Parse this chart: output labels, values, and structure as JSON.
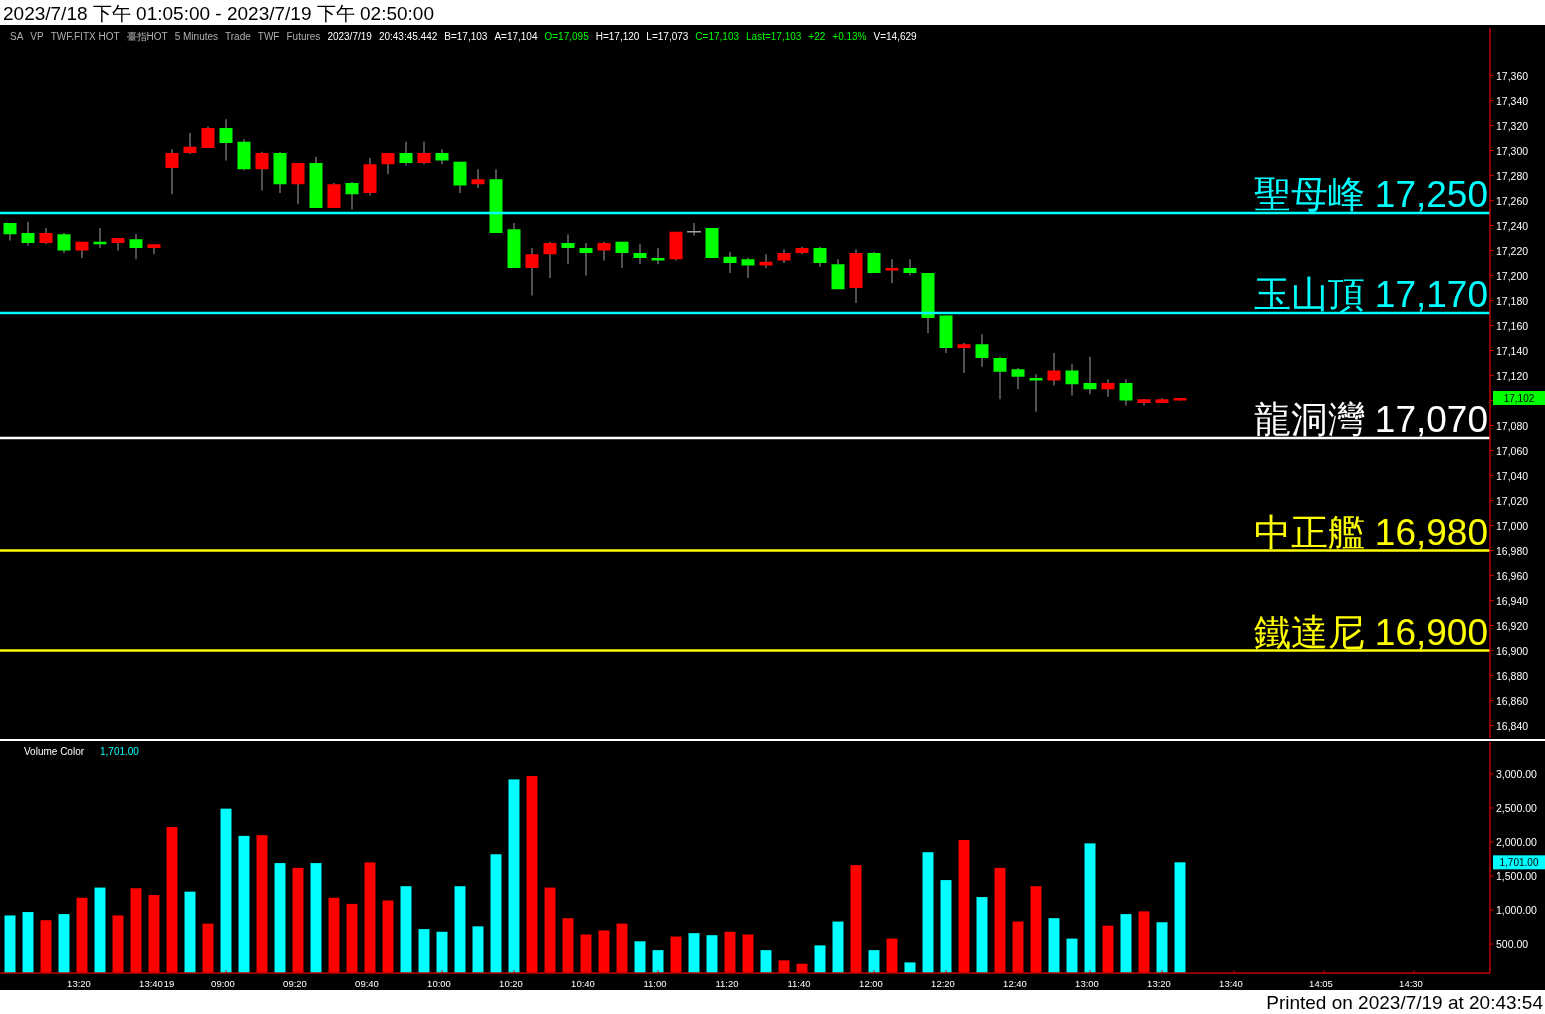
{
  "chart_data": [
    {
      "type": "candlestick",
      "title": "2023/7/18 下午 01:05:00 - 2023/7/19 下午 02:50:00",
      "categories": [
        null,
        null,
        null,
        null,
        null,
        null,
        null,
        null,
        null,
        null,
        null,
        null,
        null,
        null,
        null,
        null,
        null,
        null,
        null,
        null,
        null,
        null,
        null,
        null,
        null,
        null,
        null,
        null,
        null,
        null,
        null,
        null,
        null,
        null,
        null,
        null,
        null,
        null,
        null,
        null,
        null,
        null,
        null,
        null,
        null,
        null,
        null,
        null,
        null,
        null,
        null,
        null,
        null,
        null,
        null,
        null,
        null,
        null,
        null,
        null,
        null,
        null,
        null,
        null,
        null,
        null,
        null,
        null,
        null,
        null,
        null,
        null,
        null,
        null,
        null,
        null,
        null,
        null,
        null,
        null,
        null,
        null,
        null
      ],
      "ohlc": [
        [
          17242,
          17242,
          17228,
          17233
        ],
        [
          17234,
          17243,
          17224,
          17226
        ],
        [
          17226,
          17238,
          17225,
          17234
        ],
        [
          17233,
          17234,
          17218,
          17220
        ],
        [
          17220,
          17227,
          17214,
          17227
        ],
        [
          17227,
          17238,
          17222,
          17225
        ],
        [
          17226,
          17230,
          17220,
          17230
        ],
        [
          17229,
          17233,
          17213,
          17222
        ],
        [
          17222,
          17225,
          17217,
          17225
        ],
        [
          17286,
          17301,
          17265,
          17298
        ],
        [
          17298,
          17314,
          17297,
          17303
        ],
        [
          17302,
          17319,
          17302,
          17318
        ],
        [
          17318,
          17325,
          17292,
          17306
        ],
        [
          17307,
          17309,
          17284,
          17285
        ],
        [
          17285,
          17299,
          17268,
          17298
        ],
        [
          17298,
          17299,
          17266,
          17273
        ],
        [
          17273,
          17290,
          17257,
          17290
        ],
        [
          17290,
          17295,
          17254,
          17254
        ],
        [
          17254,
          17274,
          17254,
          17273
        ],
        [
          17274,
          17275,
          17253,
          17265
        ],
        [
          17266,
          17294,
          17264,
          17289
        ],
        [
          17289,
          17298,
          17281,
          17298
        ],
        [
          17298,
          17307,
          17288,
          17290
        ],
        [
          17290,
          17307,
          17289,
          17298
        ],
        [
          17298,
          17301,
          17289,
          17292
        ],
        [
          17291,
          17291,
          17266,
          17272
        ],
        [
          17273,
          17285,
          17270,
          17277
        ],
        [
          17277,
          17285,
          17234,
          17234
        ],
        [
          17237,
          17242,
          17206,
          17206
        ],
        [
          17206,
          17222,
          17184,
          17217
        ],
        [
          17217,
          17227,
          17198,
          17226
        ],
        [
          17226,
          17233,
          17209,
          17222
        ],
        [
          17222,
          17226,
          17200,
          17218
        ],
        [
          17220,
          17227,
          17212,
          17226
        ],
        [
          17227,
          17227,
          17206,
          17218
        ],
        [
          17218,
          17225,
          17209,
          17214
        ],
        [
          17214,
          17222,
          17209,
          17212
        ],
        [
          17213,
          17235,
          17212,
          17235
        ],
        [
          17235,
          17242,
          17232,
          17235
        ],
        [
          17238,
          17238,
          17214,
          17214
        ],
        [
          17215,
          17219,
          17202,
          17210
        ],
        [
          17213,
          17214,
          17198,
          17208
        ],
        [
          17208,
          17217,
          17206,
          17211
        ],
        [
          17212,
          17221,
          17210,
          17218
        ],
        [
          17218,
          17223,
          17217,
          17222
        ],
        [
          17222,
          17223,
          17207,
          17210
        ],
        [
          17209,
          17213,
          17189,
          17189
        ],
        [
          17190,
          17221,
          17178,
          17218
        ],
        [
          17218,
          17219,
          17202,
          17202
        ],
        [
          17204,
          17213,
          17194,
          17206
        ],
        [
          17206,
          17213,
          17200,
          17202
        ],
        [
          17202,
          17202,
          17154,
          17166
        ],
        [
          17168,
          17168,
          17138,
          17142
        ],
        [
          17142,
          17146,
          17122,
          17145
        ],
        [
          17145,
          17153,
          17127,
          17134
        ],
        [
          17134,
          17135,
          17101,
          17123
        ],
        [
          17125,
          17126,
          17109,
          17119
        ],
        [
          17118,
          17121,
          17091,
          17116
        ],
        [
          17116,
          17138,
          17112,
          17124
        ],
        [
          17124,
          17129,
          17104,
          17113
        ],
        [
          17114,
          17135,
          17105,
          17109
        ],
        [
          17109,
          17117,
          17103,
          17114
        ],
        [
          17114,
          17117,
          17096,
          17100
        ],
        [
          17098,
          17101,
          17096,
          17101
        ],
        [
          17098,
          17102,
          17098,
          17101
        ],
        [
          17100,
          17102,
          17100,
          17102
        ],
        null,
        null,
        null,
        null,
        null,
        null,
        null,
        null,
        null,
        null,
        null,
        null,
        null,
        null,
        null,
        null,
        null
      ],
      "colors": [
        "#00ff00",
        "#00ff00",
        "#ff0000",
        "#00ff00",
        "#ff0000",
        "#00ff00",
        "#ff0000",
        "#00ff00",
        "#ff0000",
        "#ff0000",
        "#ff0000",
        "#ff0000",
        "#00ff00",
        "#00ff00",
        "#ff0000",
        "#00ff00",
        "#ff0000",
        "#00ff00",
        "#ff0000",
        "#00ff00",
        "#ff0000",
        "#ff0000",
        "#00ff00",
        "#ff0000",
        "#00ff00",
        "#00ff00",
        "#ff0000",
        "#00ff00",
        "#00ff00",
        "#ff0000",
        "#ff0000",
        "#00ff00",
        "#00ff00",
        "#ff0000",
        "#00ff00",
        "#00ff00",
        "#00ff00",
        "#ff0000",
        "#a0a0a0",
        "#00ff00",
        "#00ff00",
        "#00ff00",
        "#ff0000",
        "#ff0000",
        "#ff0000",
        "#00ff00",
        "#00ff00",
        "#ff0000",
        "#00ff00",
        "#ff0000",
        "#00ff00",
        "#00ff00",
        "#00ff00",
        "#ff0000",
        "#00ff00",
        "#00ff00",
        "#00ff00",
        "#00ff00",
        "#ff0000",
        "#00ff00",
        "#00ff00",
        "#ff0000",
        "#00ff00",
        "#ff0000",
        "#ff0000",
        "#ff0000",
        null,
        null,
        null,
        null,
        null,
        null,
        null,
        null,
        null,
        null,
        null,
        null,
        null,
        null,
        null,
        null,
        null
      ],
      "ylim": [
        16830,
        17398
      ],
      "yticks": [
        {
          "value": 16840,
          "label": "16,840"
        },
        {
          "value": 16860,
          "label": "16,860"
        },
        {
          "value": 16880,
          "label": "16,880"
        },
        {
          "value": 16900,
          "label": "16,900"
        },
        {
          "value": 16920,
          "label": "16,920"
        },
        {
          "value": 16940,
          "label": "16,940"
        },
        {
          "value": 16960,
          "label": "16,960"
        },
        {
          "value": 16980,
          "label": "16,980"
        },
        {
          "value": 17000,
          "label": "17,000"
        },
        {
          "value": 17020,
          "label": "17,020"
        },
        {
          "value": 17040,
          "label": "17,040"
        },
        {
          "value": 17060,
          "label": "17,060"
        },
        {
          "value": 17080,
          "label": "17,080"
        },
        {
          "value": 17100,
          "label": null
        },
        {
          "value": 17120,
          "label": "17,120"
        },
        {
          "value": 17140,
          "label": "17,140"
        },
        {
          "value": 17160,
          "label": "17,160"
        },
        {
          "value": 17180,
          "label": "17,180"
        },
        {
          "value": 17200,
          "label": "17,200"
        },
        {
          "value": 17220,
          "label": "17,220"
        },
        {
          "value": 17240,
          "label": "17,240"
        },
        {
          "value": 17260,
          "label": "17,260"
        },
        {
          "value": 17280,
          "label": "17,280"
        },
        {
          "value": 17300,
          "label": "17,300"
        },
        {
          "value": 17320,
          "label": "17,320"
        },
        {
          "value": 17340,
          "label": "17,340"
        },
        {
          "value": 17360,
          "label": "17,360"
        }
      ],
      "ref_lines": [
        {
          "axis": "y",
          "value": 17250,
          "label": "聖母峰 17,250",
          "color": "#00ffff"
        },
        {
          "axis": "y",
          "value": 17170,
          "label": "玉山頂 17,170",
          "color": "#00ffff"
        },
        {
          "axis": "y",
          "value": 17070,
          "label": "龍洞灣 17,070",
          "color": "#ffffff"
        },
        {
          "axis": "y",
          "value": 16980,
          "label": "中正艦 16,980",
          "color": "#ffff00"
        },
        {
          "axis": "y",
          "value": 16900,
          "label": "鐵達尼 16,900",
          "color": "#ffff00"
        }
      ],
      "annotations": [
        "SA",
        "VP",
        "TWF.FITX HOT",
        "臺指HOT",
        "5 Minutes",
        "Trade",
        "TWF",
        "Futures",
        "2023/7/19",
        "20:43:45.442",
        "B=17,103",
        "A=17,104",
        "O=17,095",
        "H=17,120",
        "L=17,073",
        "C=17,103",
        "Last=17,103",
        "+22",
        "+0.13%",
        "V=14,629",
        "17,102"
      ],
      "tick_labels": "y"
    },
    {
      "type": "bar",
      "categories": [
        null,
        null,
        null,
        null,
        "13:20",
        null,
        null,
        null,
        "13:40",
        "19",
        null,
        null,
        "09:00",
        null,
        null,
        null,
        "09:20",
        null,
        null,
        null,
        "09:40",
        null,
        null,
        null,
        "10:00",
        null,
        null,
        null,
        "10:20",
        null,
        null,
        null,
        "10:40",
        null,
        null,
        null,
        "11:00",
        null,
        null,
        null,
        "11:20",
        null,
        null,
        null,
        "11:40",
        null,
        null,
        null,
        "12:00",
        null,
        null,
        null,
        "12:20",
        null,
        null,
        null,
        "12:40",
        null,
        null,
        null,
        "13:00",
        null,
        null,
        null,
        "13:20",
        null,
        null,
        null,
        "13:40",
        null,
        null,
        null,
        null,
        "14:05",
        null,
        null,
        null,
        null,
        "14:30",
        null,
        null,
        null,
        null
      ],
      "values": [
        920,
        970,
        850,
        940,
        1180,
        1330,
        920,
        1320,
        1220,
        2220,
        1270,
        800,
        2490,
        2090,
        2100,
        1690,
        1620,
        1690,
        1180,
        1090,
        1700,
        1140,
        1350,
        720,
        680,
        1350,
        760,
        1820,
        2920,
        2970,
        1330,
        880,
        640,
        700,
        800,
        540,
        410,
        610,
        660,
        630,
        680,
        640,
        410,
        260,
        210,
        480,
        830,
        1660,
        410,
        580,
        230,
        1850,
        1440,
        2030,
        1190,
        1620,
        830,
        1350,
        880,
        580,
        1980,
        770,
        940,
        980,
        820,
        1701,
        null,
        null,
        null,
        null,
        null,
        null,
        null,
        null,
        null,
        null,
        null,
        null,
        null,
        null,
        null,
        null,
        null
      ],
      "colors": [
        "#00ffff",
        "#00ffff",
        "#ff0000",
        "#00ffff",
        "#ff0000",
        "#00ffff",
        "#ff0000",
        "#ff0000",
        "#ff0000",
        "#ff0000",
        "#00ffff",
        "#ff0000",
        "#00ffff",
        "#00ffff",
        "#ff0000",
        "#00ffff",
        "#ff0000",
        "#00ffff",
        "#ff0000",
        "#ff0000",
        "#ff0000",
        "#ff0000",
        "#00ffff",
        "#00ffff",
        "#00ffff",
        "#00ffff",
        "#00ffff",
        "#00ffff",
        "#00ffff",
        "#ff0000",
        "#ff0000",
        "#ff0000",
        "#ff0000",
        "#ff0000",
        "#ff0000",
        "#00ffff",
        "#00ffff",
        "#ff0000",
        "#00ffff",
        "#00ffff",
        "#ff0000",
        "#ff0000",
        "#00ffff",
        "#ff0000",
        "#ff0000",
        "#00ffff",
        "#00ffff",
        "#ff0000",
        "#00ffff",
        "#ff0000",
        "#00ffff",
        "#00ffff",
        "#00ffff",
        "#ff0000",
        "#00ffff",
        "#ff0000",
        "#ff0000",
        "#ff0000",
        "#00ffff",
        "#00ffff",
        "#00ffff",
        "#ff0000",
        "#00ffff",
        "#ff0000",
        "#00ffff",
        "#00ffff",
        null,
        null,
        null,
        null,
        null,
        null,
        null,
        null,
        null,
        null,
        null,
        null,
        null,
        null,
        null,
        null,
        null
      ],
      "ylim": [
        74,
        3470
      ],
      "yticks": [
        {
          "value": 500,
          "label": "500.00"
        },
        {
          "value": 1000,
          "label": "1,000.00"
        },
        {
          "value": 1500,
          "label": "1,500.00"
        },
        {
          "value": 2000,
          "label": "2,000.00"
        },
        {
          "value": 2500,
          "label": "2,500.00"
        },
        {
          "value": 3000,
          "label": "3,000.00"
        }
      ],
      "annotations": [
        "Volume Color",
        "1,701.00",
        "Printed on 2023/7/19 at 20:43:54",
        "1,701.00"
      ]
    }
  ]
}
